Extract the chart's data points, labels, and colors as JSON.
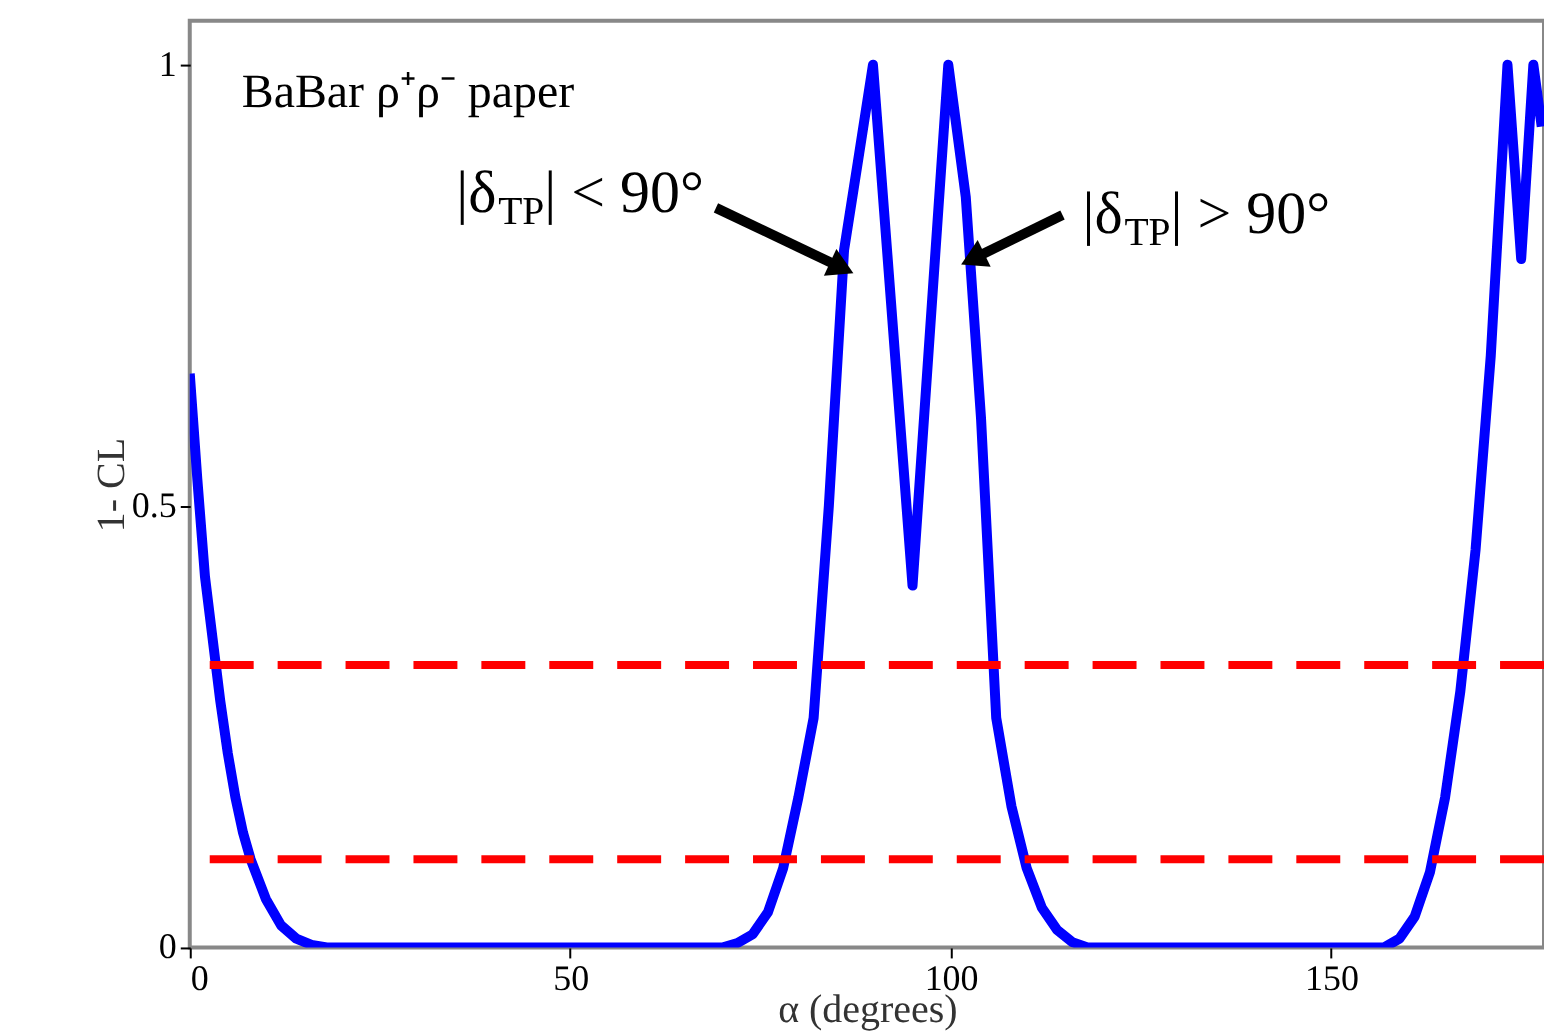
{
  "chart_data": {
    "type": "line",
    "xlabel": "α (degrees)",
    "ylabel": "1- CL",
    "xlim": [
      0,
      178
    ],
    "ylim": [
      0,
      1.05
    ],
    "xticks": [
      0,
      50,
      100,
      150
    ],
    "yticks": [
      {
        "value": 0,
        "label": "0"
      },
      0.5,
      {
        "value": 1,
        "label": "1"
      }
    ],
    "grid": false,
    "line_style": "solid",
    "marker": "none",
    "series": [
      {
        "color": "#0000ff",
        "x": [
          0,
          1,
          2,
          3,
          4,
          5,
          6,
          7,
          8,
          10,
          12,
          14,
          16,
          18,
          70,
          72,
          74,
          76,
          78,
          80,
          82,
          84,
          86,
          88,
          89.8,
          95,
          99.7,
          102,
          104,
          106,
          108,
          110,
          112,
          114,
          116,
          118,
          157,
          159,
          161,
          163,
          165,
          167,
          169,
          171,
          173.2,
          175,
          176.6,
          177.7
        ],
        "values": [
          0.65,
          0.53,
          0.42,
          0.35,
          0.28,
          0.22,
          0.17,
          0.13,
          0.1,
          0.055,
          0.025,
          0.01,
          0.003,
          0,
          0,
          0.005,
          0.015,
          0.04,
          0.09,
          0.17,
          0.26,
          0.5,
          0.79,
          0.9,
          1,
          0.41,
          1,
          0.85,
          0.6,
          0.26,
          0.16,
          0.09,
          0.045,
          0.02,
          0.006,
          0,
          0,
          0.01,
          0.035,
          0.085,
          0.17,
          0.29,
          0.45,
          0.67,
          1,
          0.78,
          1,
          0.93
        ]
      }
    ],
    "ref_lines": [
      {
        "axis": "y",
        "value": 0.32,
        "color": "#ff0000",
        "line_style": "dashed"
      },
      {
        "axis": "y",
        "value": 0.1,
        "color": "#ff0000",
        "line_style": "dashed"
      }
    ],
    "annotations": [
      "BaBar ρ⁺ρ⁻ paper",
      {
        "text": "|δ$_{TP}$| < 90°",
        "x": 85.7,
        "y": 0.77
      },
      {
        "text": "|δ$_{TP}$| > 90°",
        "x": 102.9,
        "y": 0.78
      }
    ]
  }
}
